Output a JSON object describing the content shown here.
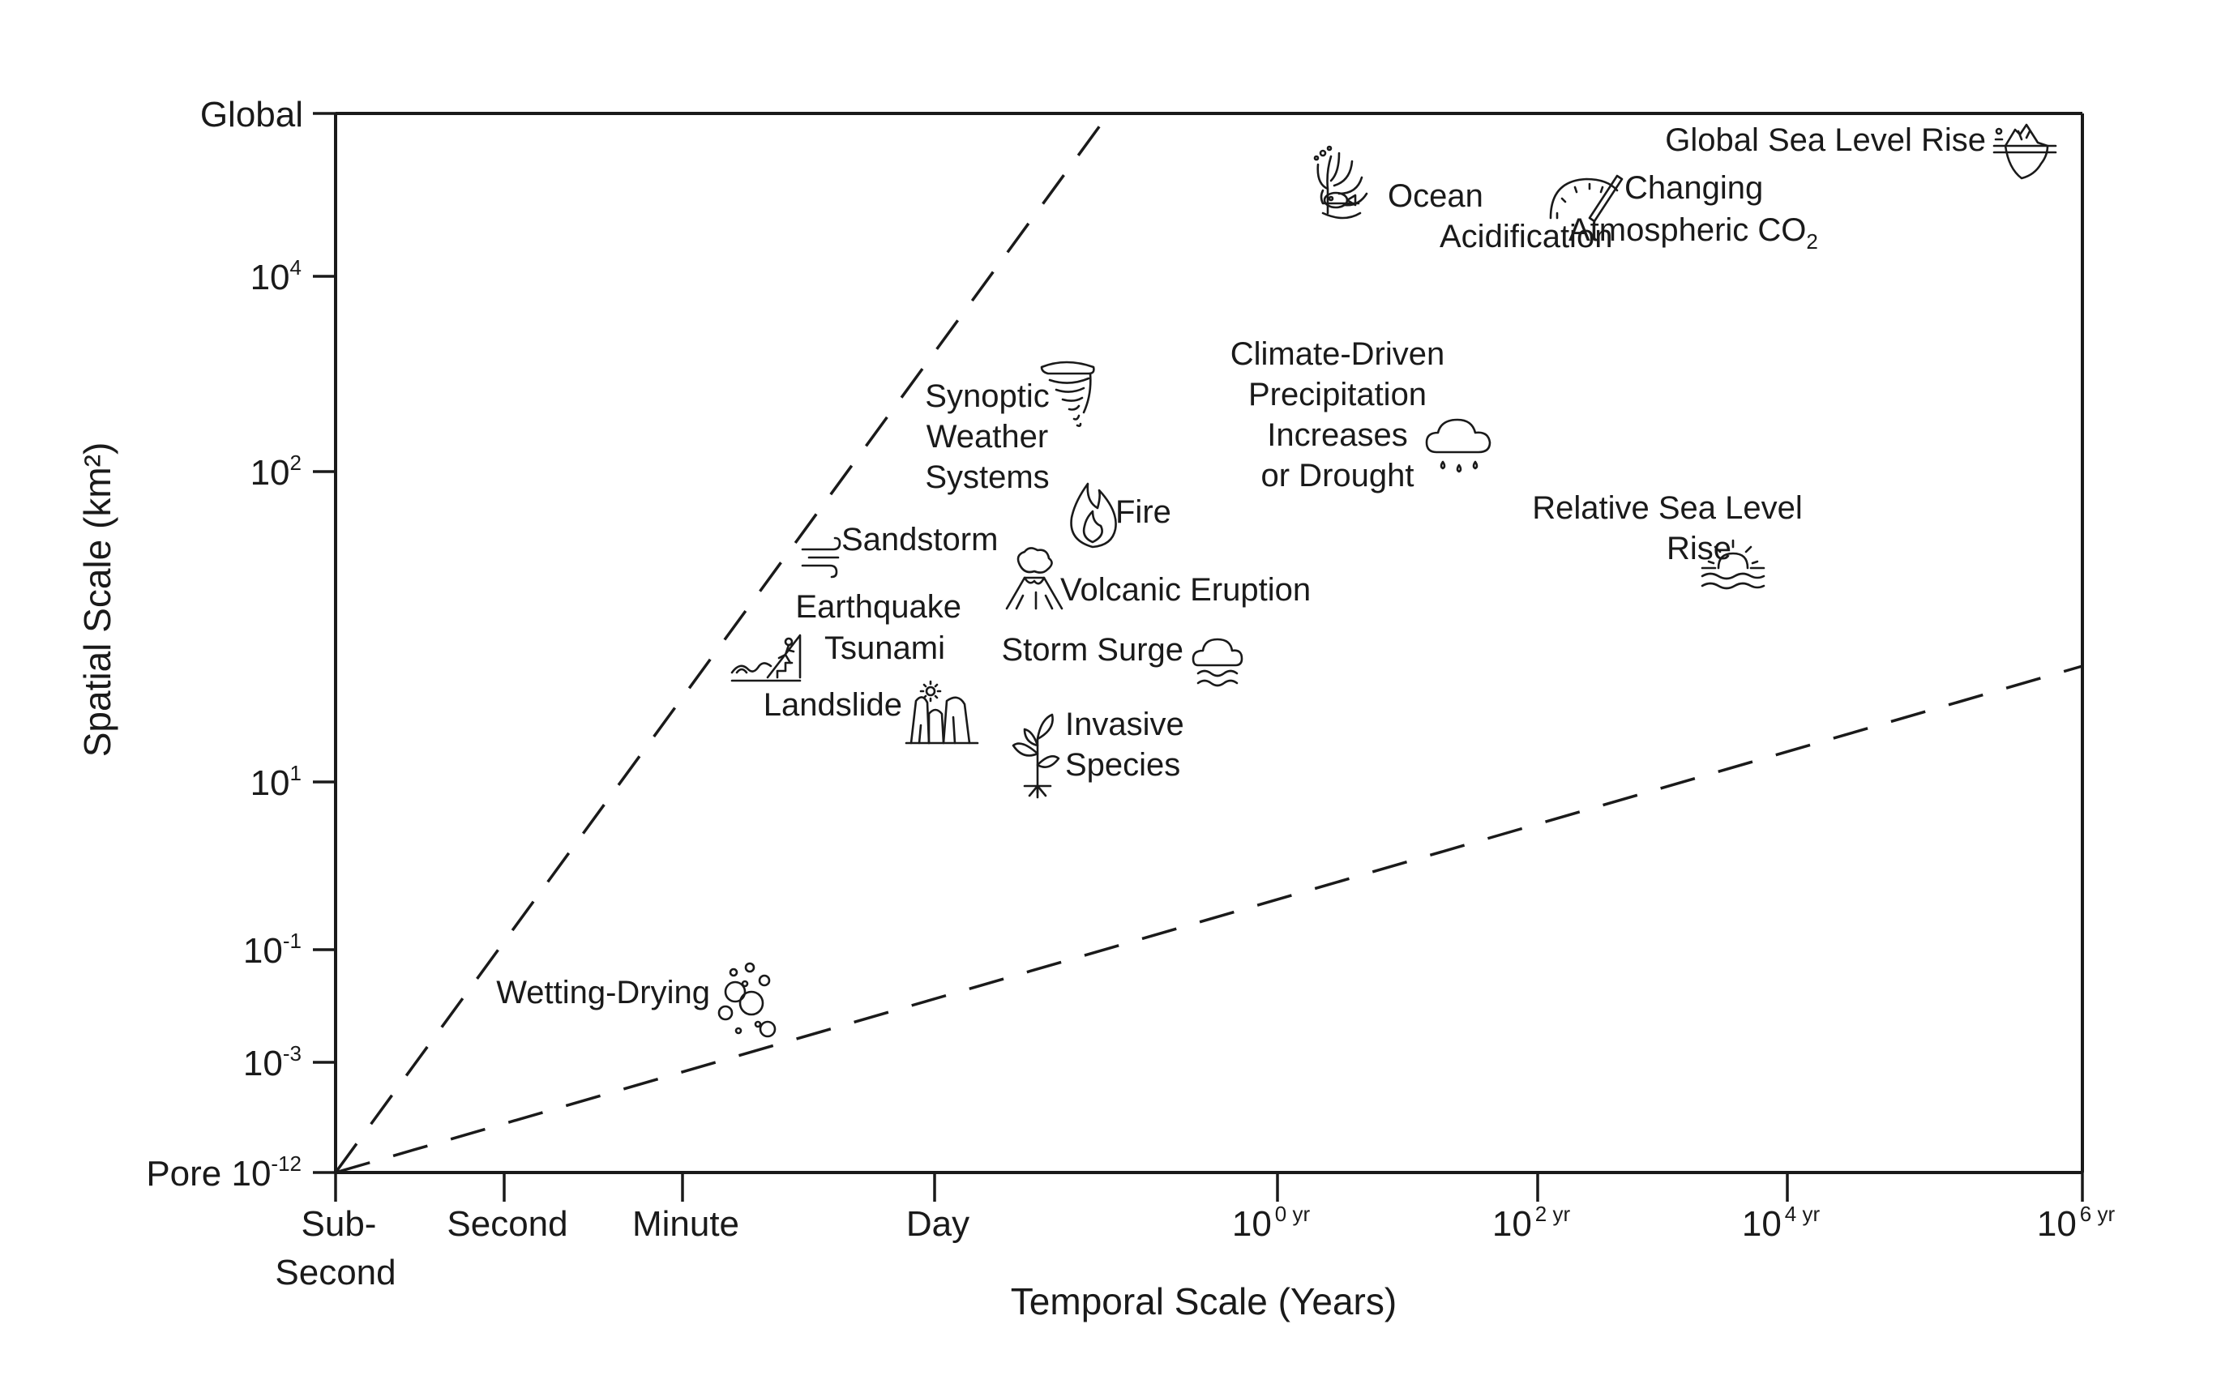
{
  "chart_data": {
    "type": "scatter",
    "title": "",
    "xlabel": "Temporal Scale (Years)",
    "ylabel": "Spatial Scale (km²)",
    "x_ticks": [
      {
        "label": "Sub-",
        "label2": "Second"
      },
      {
        "label": "Second"
      },
      {
        "label": "Minute"
      },
      {
        "label": "Day"
      },
      {
        "label": "10",
        "sup": "0 yr"
      },
      {
        "label": "10",
        "sup": "2 yr"
      },
      {
        "label": "10",
        "sup": "4 yr"
      },
      {
        "label": "10",
        "sup": "6 yr"
      }
    ],
    "y_ticks": [
      {
        "label": "Pore 10",
        "sup": "-12"
      },
      {
        "label": "10",
        "sup": "-3"
      },
      {
        "label": "10",
        "sup": "-1"
      },
      {
        "label": "10",
        "sup": "1"
      },
      {
        "label": "10",
        "sup": "2"
      },
      {
        "label": "10",
        "sup": "4"
      },
      {
        "label": "Global"
      }
    ],
    "events": [
      {
        "label": "Wetting-Drying",
        "icon": "bubbles-icon"
      },
      {
        "label": "Landslide",
        "icon": "landslide-icon"
      },
      {
        "label": "Earthquake",
        "label2": "Tsunami",
        "icon": "tsunami-icon"
      },
      {
        "label": "Sandstorm",
        "icon": "wind-icon"
      },
      {
        "label": "Synoptic",
        "label2": "Weather",
        "label3": "Systems",
        "icon": "tornado-icon"
      },
      {
        "label": "Fire",
        "icon": "flame-icon"
      },
      {
        "label": "Volcanic Eruption",
        "icon": "volcano-icon"
      },
      {
        "label": "Storm Surge",
        "icon": "cloud-waves-icon"
      },
      {
        "label": "Invasive",
        "label2": "Species",
        "icon": "plant-icon"
      },
      {
        "label": "Climate-Driven",
        "label2": "Precipitation",
        "label3": "Increases",
        "label4": "or Drought",
        "icon": "rain-cloud-icon"
      },
      {
        "label": "Ocean",
        "label2": "Acidification",
        "icon": "coral-fish-icon"
      },
      {
        "label": "Changing",
        "label2": "Atmospheric CO",
        "sub": "2",
        "icon": "gauge-icon"
      },
      {
        "label": "Global Sea Level Rise",
        "icon": "iceberg-icon"
      },
      {
        "label": "Relative Sea Level",
        "label2": "Rise",
        "icon": "sunset-waves-icon"
      }
    ],
    "reference_lines": [
      {
        "style": "dashed",
        "from": "Pore / Sub-Second",
        "to": "Global / between Day and 10^0 yr"
      },
      {
        "style": "dashed",
        "from": "Pore / Sub-Second",
        "to": "between 10^1 and 10^2 / 10^6 yr"
      }
    ],
    "grid": false,
    "legend": "none"
  }
}
